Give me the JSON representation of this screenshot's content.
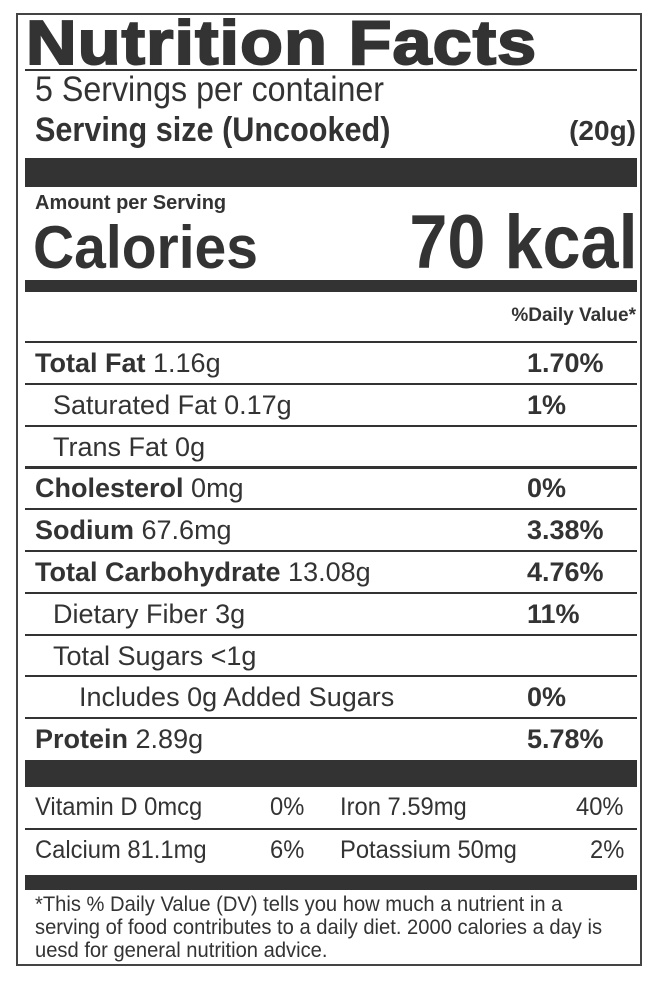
{
  "title": "Nutrition Facts",
  "servings_per_container": "5 Servings per container",
  "serving_size_label": "Serving size (Uncooked)",
  "serving_size_value": "(20g)",
  "amount_per_serving": "Amount per Serving",
  "calories_label": "Calories",
  "calories_value": "70 kcal",
  "daily_value_header": "%Daily Value*",
  "nutrients": [
    {
      "name": "Total Fat",
      "amount": "1.16g",
      "dv": "1.70%"
    },
    {
      "name": "Saturated Fat",
      "amount": "0.17g",
      "dv": "1%"
    },
    {
      "name": "Trans Fat",
      "amount": "0g",
      "dv": ""
    },
    {
      "name": "Cholesterol",
      "amount": "0mg",
      "dv": "0%"
    },
    {
      "name": "Sodium",
      "amount": "67.6mg",
      "dv": "3.38%"
    },
    {
      "name": "Total Carbohydrate",
      "amount": "13.08g",
      "dv": "4.76%"
    },
    {
      "name": "Dietary Fiber",
      "amount": "3g",
      "dv": "11%"
    },
    {
      "name": "Total Sugars",
      "amount": "<1g",
      "dv": ""
    },
    {
      "name": "Includes 0g Added Sugars",
      "amount": "",
      "dv": "0%"
    },
    {
      "name": "Protein",
      "amount": "2.89g",
      "dv": "5.78%"
    }
  ],
  "vitamins": [
    {
      "label": "Vitamin D 0mcg",
      "dv": "0%"
    },
    {
      "label": "Iron 7.59mg",
      "dv": "40%"
    },
    {
      "label": "Calcium 81.1mg",
      "dv": "6%"
    },
    {
      "label": "Potassium 50mg",
      "dv": "2%"
    }
  ],
  "footnote": "*This % Daily Value (DV) tells you how much a nutrient in a serving of food contributes to a daily diet. 2000 calories a day is uesd for general nutrition advice."
}
